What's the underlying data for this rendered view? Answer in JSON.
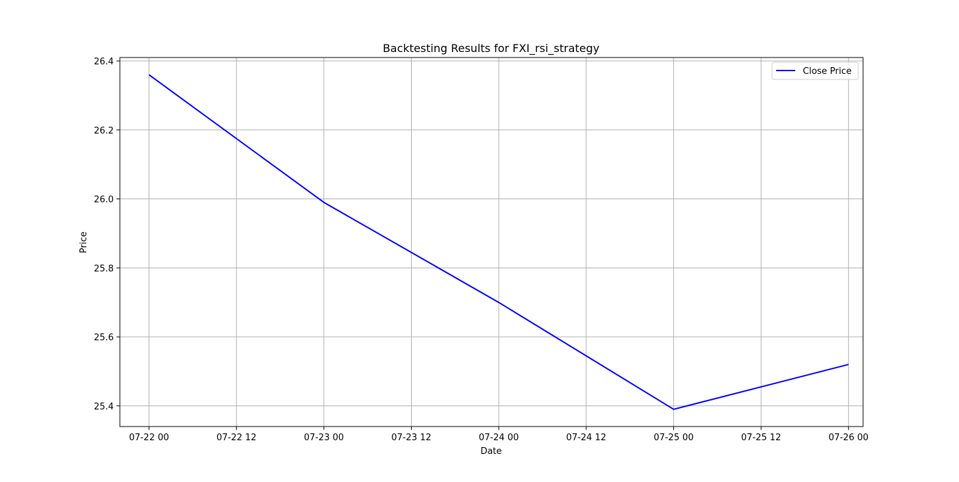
{
  "chart_data": {
    "type": "line",
    "title": "Backtesting Results for FXI_rsi_strategy",
    "xlabel": "Date",
    "ylabel": "Price",
    "x": [
      "07-22 00",
      "07-23 00",
      "07-24 00",
      "07-25 00",
      "07-26 00"
    ],
    "series": [
      {
        "name": "Close Price",
        "color": "#0000ff",
        "values": [
          26.36,
          25.99,
          25.7,
          25.39,
          25.52
        ]
      }
    ],
    "x_ticks": [
      "07-22 00",
      "07-22 12",
      "07-23 00",
      "07-23 12",
      "07-24 00",
      "07-24 12",
      "07-25 00",
      "07-25 12",
      "07-26 00"
    ],
    "y_ticks": [
      "25.4",
      "25.6",
      "25.8",
      "26.0",
      "26.2",
      "26.4"
    ],
    "xlim": [
      "07-21 20",
      "07-26 02"
    ],
    "ylim": [
      25.34,
      26.41
    ],
    "grid": true,
    "grid_color": "#b0b0b0",
    "legend_position": "top-right"
  }
}
